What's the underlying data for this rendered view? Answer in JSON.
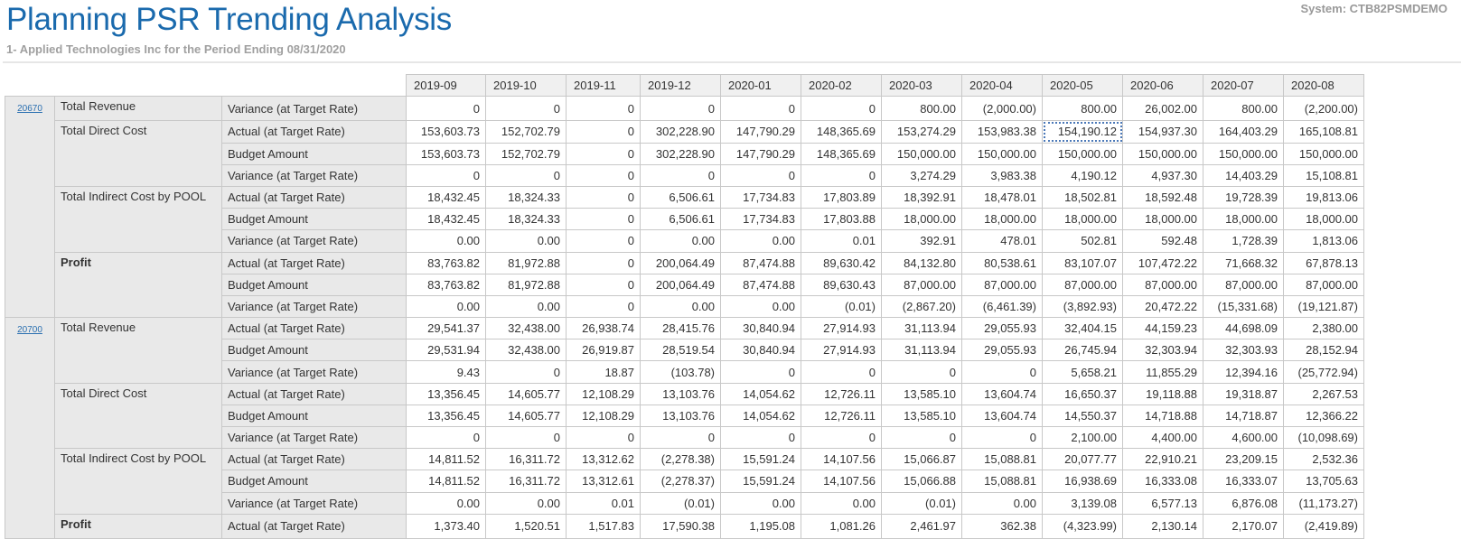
{
  "header": {
    "title": "Planning PSR Trending Analysis",
    "subtitle": "1- Applied Technologies Inc for the Period Ending 08/31/2020",
    "system": "System:  CTB82PSMDEMO"
  },
  "colors": {
    "title": "#1a6aad",
    "link": "#2a6fb0",
    "label_bg": "#e9e9e9"
  },
  "table": {
    "periods": [
      "2019-09",
      "2019-10",
      "2019-11",
      "2019-12",
      "2020-01",
      "2020-02",
      "2020-03",
      "2020-04",
      "2020-05",
      "2020-06",
      "2020-07",
      "2020-08"
    ],
    "focused_cell": {
      "project": "20670",
      "group": "Total Direct Cost",
      "measure": "Actual (at Target Rate)",
      "period": "2020-05"
    },
    "projects": [
      {
        "id": "20670",
        "groups": [
          {
            "name": "Total Revenue",
            "bold": false,
            "rows": [
              {
                "measure": "Variance (at Target Rate)",
                "values": [
                  "0",
                  "0",
                  "0",
                  "0",
                  "0",
                  "0",
                  "800.00",
                  "(2,000.00)",
                  "800.00",
                  "26,002.00",
                  "800.00",
                  "(2,200.00)"
                ]
              }
            ]
          },
          {
            "name": "Total Direct Cost",
            "bold": false,
            "rows": [
              {
                "measure": "Actual (at Target Rate)",
                "values": [
                  "153,603.73",
                  "152,702.79",
                  "0",
                  "302,228.90",
                  "147,790.29",
                  "148,365.69",
                  "153,274.29",
                  "153,983.38",
                  "154,190.12",
                  "154,937.30",
                  "164,403.29",
                  "165,108.81"
                ]
              },
              {
                "measure": "Budget Amount",
                "values": [
                  "153,603.73",
                  "152,702.79",
                  "0",
                  "302,228.90",
                  "147,790.29",
                  "148,365.69",
                  "150,000.00",
                  "150,000.00",
                  "150,000.00",
                  "150,000.00",
                  "150,000.00",
                  "150,000.00"
                ]
              },
              {
                "measure": "Variance (at Target Rate)",
                "values": [
                  "0",
                  "0",
                  "0",
                  "0",
                  "0",
                  "0",
                  "3,274.29",
                  "3,983.38",
                  "4,190.12",
                  "4,937.30",
                  "14,403.29",
                  "15,108.81"
                ]
              }
            ]
          },
          {
            "name": "Total Indirect Cost by POOL",
            "bold": false,
            "rows": [
              {
                "measure": "Actual (at Target Rate)",
                "values": [
                  "18,432.45",
                  "18,324.33",
                  "0",
                  "6,506.61",
                  "17,734.83",
                  "17,803.89",
                  "18,392.91",
                  "18,478.01",
                  "18,502.81",
                  "18,592.48",
                  "19,728.39",
                  "19,813.06"
                ]
              },
              {
                "measure": "Budget Amount",
                "values": [
                  "18,432.45",
                  "18,324.33",
                  "0",
                  "6,506.61",
                  "17,734.83",
                  "17,803.88",
                  "18,000.00",
                  "18,000.00",
                  "18,000.00",
                  "18,000.00",
                  "18,000.00",
                  "18,000.00"
                ]
              },
              {
                "measure": "Variance (at Target Rate)",
                "values": [
                  "0.00",
                  "0.00",
                  "0",
                  "0.00",
                  "0.00",
                  "0.01",
                  "392.91",
                  "478.01",
                  "502.81",
                  "592.48",
                  "1,728.39",
                  "1,813.06"
                ]
              }
            ]
          },
          {
            "name": "Profit",
            "bold": true,
            "rows": [
              {
                "measure": "Actual (at Target Rate)",
                "values": [
                  "83,763.82",
                  "81,972.88",
                  "0",
                  "200,064.49",
                  "87,474.88",
                  "89,630.42",
                  "84,132.80",
                  "80,538.61",
                  "83,107.07",
                  "107,472.22",
                  "71,668.32",
                  "67,878.13"
                ]
              },
              {
                "measure": "Budget Amount",
                "values": [
                  "83,763.82",
                  "81,972.88",
                  "0",
                  "200,064.49",
                  "87,474.88",
                  "89,630.43",
                  "87,000.00",
                  "87,000.00",
                  "87,000.00",
                  "87,000.00",
                  "87,000.00",
                  "87,000.00"
                ]
              },
              {
                "measure": "Variance (at Target Rate)",
                "values": [
                  "0.00",
                  "0.00",
                  "0",
                  "0.00",
                  "0.00",
                  "(0.01)",
                  "(2,867.20)",
                  "(6,461.39)",
                  "(3,892.93)",
                  "20,472.22",
                  "(15,331.68)",
                  "(19,121.87)"
                ]
              }
            ]
          }
        ]
      },
      {
        "id": "20700",
        "groups": [
          {
            "name": "Total Revenue",
            "bold": false,
            "rows": [
              {
                "measure": "Actual (at Target Rate)",
                "values": [
                  "29,541.37",
                  "32,438.00",
                  "26,938.74",
                  "28,415.76",
                  "30,840.94",
                  "27,914.93",
                  "31,113.94",
                  "29,055.93",
                  "32,404.15",
                  "44,159.23",
                  "44,698.09",
                  "2,380.00"
                ]
              },
              {
                "measure": "Budget Amount",
                "values": [
                  "29,531.94",
                  "32,438.00",
                  "26,919.87",
                  "28,519.54",
                  "30,840.94",
                  "27,914.93",
                  "31,113.94",
                  "29,055.93",
                  "26,745.94",
                  "32,303.94",
                  "32,303.93",
                  "28,152.94"
                ]
              },
              {
                "measure": "Variance (at Target Rate)",
                "values": [
                  "9.43",
                  "0",
                  "18.87",
                  "(103.78)",
                  "0",
                  "0",
                  "0",
                  "0",
                  "5,658.21",
                  "11,855.29",
                  "12,394.16",
                  "(25,772.94)"
                ]
              }
            ]
          },
          {
            "name": "Total Direct Cost",
            "bold": false,
            "rows": [
              {
                "measure": "Actual (at Target Rate)",
                "values": [
                  "13,356.45",
                  "14,605.77",
                  "12,108.29",
                  "13,103.76",
                  "14,054.62",
                  "12,726.11",
                  "13,585.10",
                  "13,604.74",
                  "16,650.37",
                  "19,118.88",
                  "19,318.87",
                  "2,267.53"
                ]
              },
              {
                "measure": "Budget Amount",
                "values": [
                  "13,356.45",
                  "14,605.77",
                  "12,108.29",
                  "13,103.76",
                  "14,054.62",
                  "12,726.11",
                  "13,585.10",
                  "13,604.74",
                  "14,550.37",
                  "14,718.88",
                  "14,718.87",
                  "12,366.22"
                ]
              },
              {
                "measure": "Variance (at Target Rate)",
                "values": [
                  "0",
                  "0",
                  "0",
                  "0",
                  "0",
                  "0",
                  "0",
                  "0",
                  "2,100.00",
                  "4,400.00",
                  "4,600.00",
                  "(10,098.69)"
                ]
              }
            ]
          },
          {
            "name": "Total Indirect Cost by POOL",
            "bold": false,
            "rows": [
              {
                "measure": "Actual (at Target Rate)",
                "values": [
                  "14,811.52",
                  "16,311.72",
                  "13,312.62",
                  "(2,278.38)",
                  "15,591.24",
                  "14,107.56",
                  "15,066.87",
                  "15,088.81",
                  "20,077.77",
                  "22,910.21",
                  "23,209.15",
                  "2,532.36"
                ]
              },
              {
                "measure": "Budget Amount",
                "values": [
                  "14,811.52",
                  "16,311.72",
                  "13,312.61",
                  "(2,278.37)",
                  "15,591.24",
                  "14,107.56",
                  "15,066.88",
                  "15,088.81",
                  "16,938.69",
                  "16,333.08",
                  "16,333.07",
                  "13,705.63"
                ]
              },
              {
                "measure": "Variance (at Target Rate)",
                "values": [
                  "0.00",
                  "0.00",
                  "0.01",
                  "(0.01)",
                  "0.00",
                  "0.00",
                  "(0.01)",
                  "0.00",
                  "3,139.08",
                  "6,577.13",
                  "6,876.08",
                  "(11,173.27)"
                ]
              }
            ]
          },
          {
            "name": "Profit",
            "bold": true,
            "rows": [
              {
                "measure": "Actual (at Target Rate)",
                "values": [
                  "1,373.40",
                  "1,520.51",
                  "1,517.83",
                  "17,590.38",
                  "1,195.08",
                  "1,081.26",
                  "2,461.97",
                  "362.38",
                  "(4,323.99)",
                  "2,130.14",
                  "2,170.07",
                  "(2,419.89)"
                ]
              }
            ]
          }
        ]
      }
    ]
  }
}
